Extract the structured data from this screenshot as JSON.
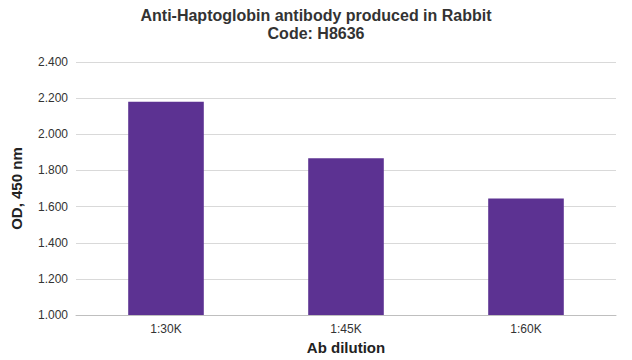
{
  "chart_data": {
    "type": "bar",
    "title": "Anti-Haptoglobin antibody produced in Rabbit",
    "subtitle": "Code: H8636",
    "x_label": "Ab dilution",
    "y_label": "OD, 450 nm",
    "categories": [
      "1:30K",
      "1:45K",
      "1:60K"
    ],
    "values": [
      2.18,
      1.868,
      1.645
    ],
    "color": "#5c3292",
    "ylim": [
      1.0,
      2.4
    ],
    "yticks": [
      {
        "value": 1.0,
        "label": "1.000"
      },
      {
        "value": 1.2,
        "label": "1.200"
      },
      {
        "value": 1.4,
        "label": "1.400"
      },
      {
        "value": 1.6,
        "label": "1.600"
      },
      {
        "value": 1.8,
        "label": "1.800"
      },
      {
        "value": 2.0,
        "label": "2.000"
      },
      {
        "value": 2.2,
        "label": "2.200"
      },
      {
        "value": 2.4,
        "label": "2.400"
      }
    ],
    "grid": true
  }
}
